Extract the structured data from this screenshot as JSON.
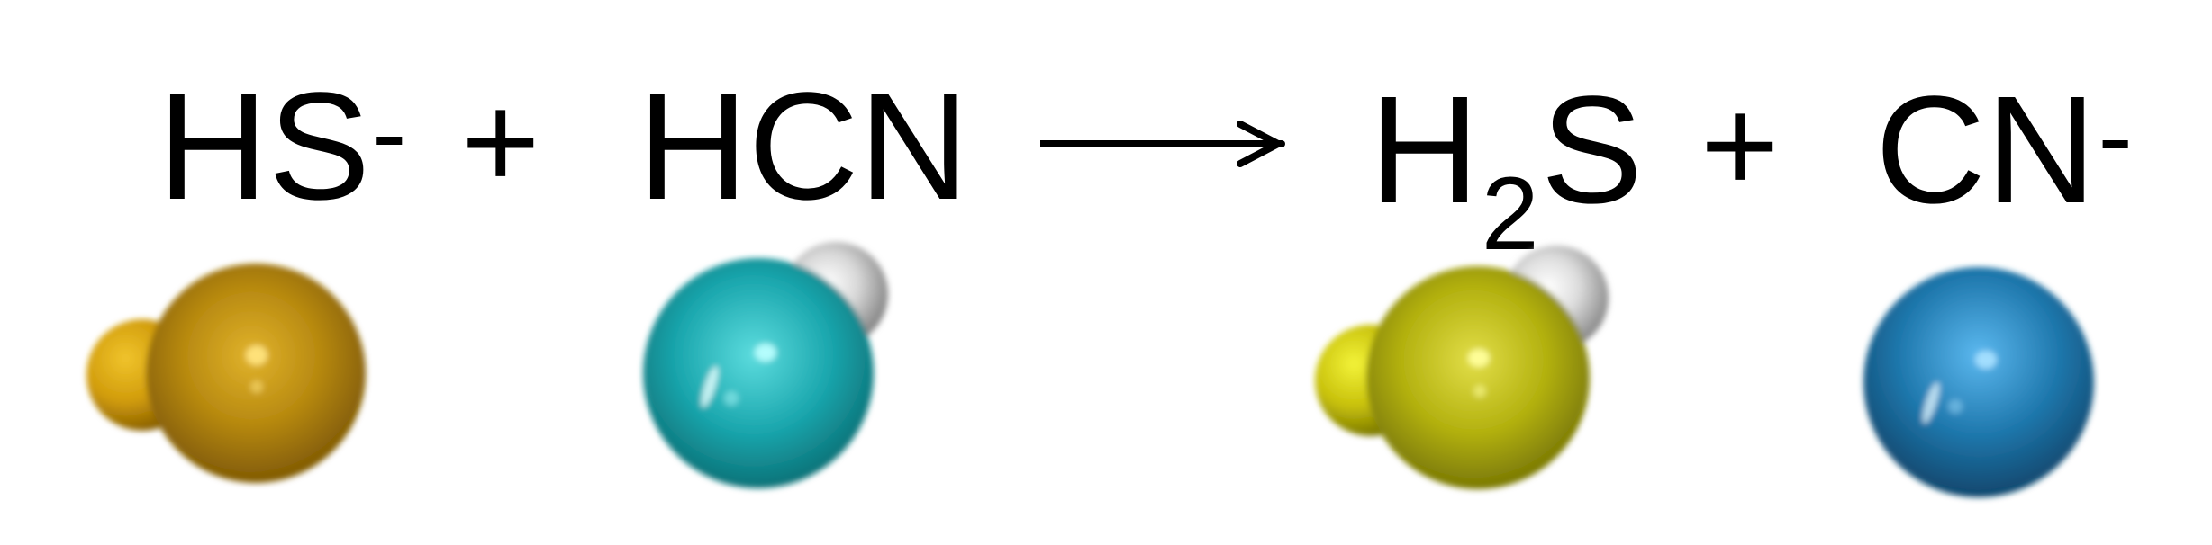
{
  "equation": {
    "reactant_1": {
      "base": "HS",
      "sup": "-"
    },
    "plus_1": "+",
    "reactant_2": {
      "base": "HCN"
    },
    "product_1": {
      "h": "H",
      "sub": "2",
      "s": "S"
    },
    "plus_2": "+",
    "product_2": {
      "base": "CN",
      "sup": "-"
    }
  },
  "colors": {
    "sulfur_hs": "#b88a10",
    "hydrogen_hs": "#d09a08",
    "carbon_hcn": "#1aa6ad",
    "hydrogen": "#d8d8d8",
    "sulfur_h2s": "#b3b10f",
    "hydrogen_h2s": "#c7c00a",
    "cn_ion": "#1f78ad"
  },
  "molecules": [
    {
      "name": "HS-",
      "atoms": [
        "sulfur",
        "hydrogen"
      ]
    },
    {
      "name": "HCN",
      "atoms": [
        "carbon",
        "hydrogen"
      ]
    },
    {
      "name": "H2S",
      "atoms": [
        "sulfur",
        "hydrogen",
        "hydrogen"
      ]
    },
    {
      "name": "CN-",
      "atoms": [
        "carbon-nitrogen"
      ]
    }
  ]
}
